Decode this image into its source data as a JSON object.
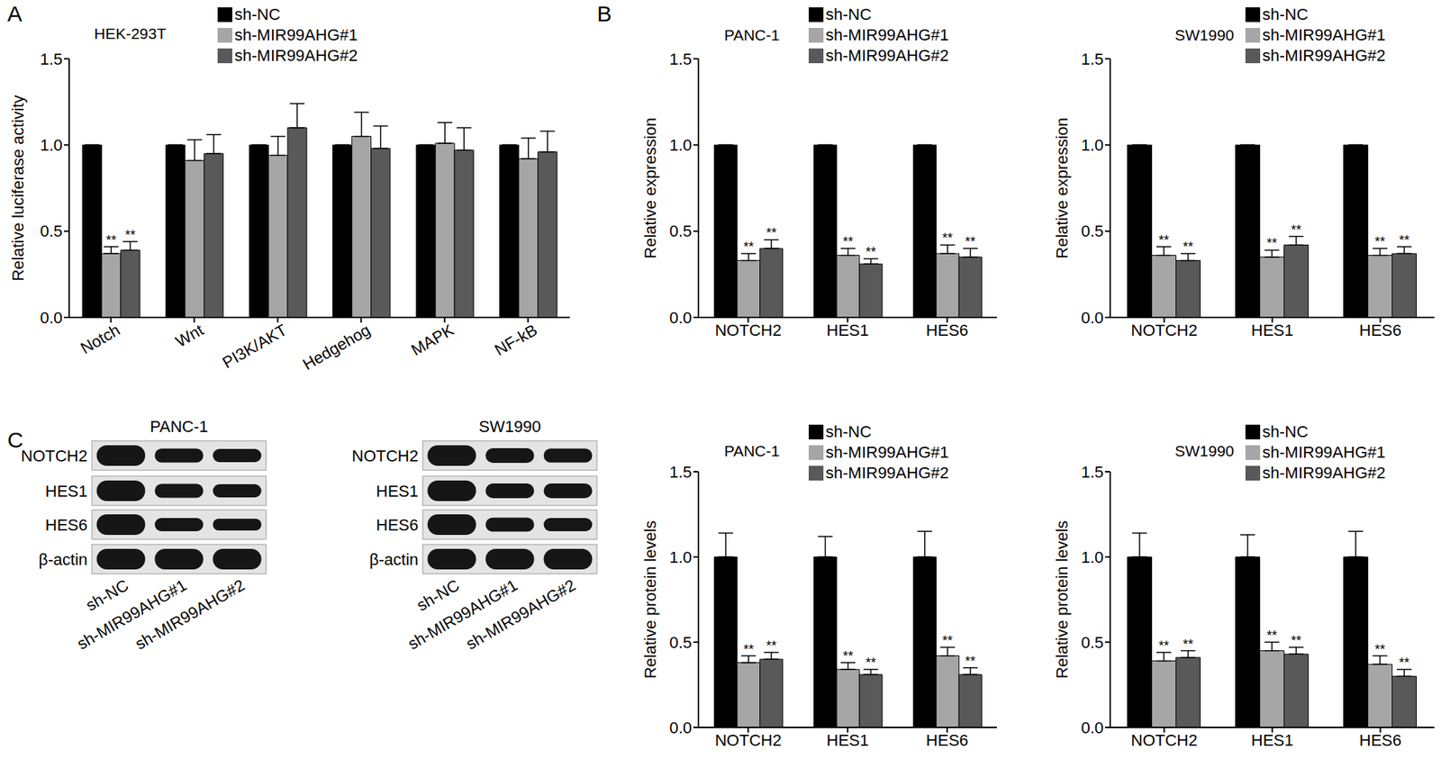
{
  "chart_data": [
    {
      "type": "bar",
      "title": "HEK-293T",
      "annotations": [
        "A"
      ],
      "ylabel": "Relative luciferase activity",
      "categories": [
        "Notch",
        "Wnt",
        "PI3K/AKT",
        "Hedgehog",
        "MAPK",
        "NF-kB"
      ],
      "ylim": [
        0,
        1.5
      ],
      "yticks": [
        {
          "value": 0,
          "label": "0.0"
        },
        0.5,
        {
          "value": 1,
          "label": "1.0"
        },
        1.5
      ],
      "grid": false,
      "legend": "top",
      "series": [
        {
          "name": "sh-NC",
          "color": "#000000",
          "values": [
            1,
            1,
            1,
            1,
            1,
            1
          ],
          "errors": [
            0,
            0,
            0,
            0,
            0,
            0
          ]
        },
        {
          "name": "sh-MIR99AHG#1",
          "color": "#a6a6a6",
          "values": [
            0.37,
            0.91,
            0.94,
            1.05,
            1.01,
            0.92
          ],
          "errors": [
            0.04,
            0.12,
            0.11,
            0.14,
            0.12,
            0.12
          ],
          "annotations": [
            "**",
            null,
            null,
            null,
            null,
            null
          ]
        },
        {
          "name": "sh-MIR99AHG#2",
          "color": "#595959",
          "values": [
            0.39,
            0.95,
            1.1,
            0.98,
            0.97,
            0.96
          ],
          "errors": [
            0.05,
            0.11,
            0.14,
            0.13,
            0.13,
            0.12
          ],
          "annotations": [
            "**",
            null,
            null,
            null,
            null,
            null
          ]
        }
      ]
    },
    {
      "type": "bar",
      "title": "PANC-1",
      "annotations": [
        "B"
      ],
      "ylabel": "Relative expression",
      "categories": [
        "NOTCH2",
        "HES1",
        "HES6"
      ],
      "ylim": [
        0,
        1.5
      ],
      "yticks": [
        {
          "value": 0,
          "label": "0.0"
        },
        0.5,
        {
          "value": 1,
          "label": "1.0"
        },
        1.5
      ],
      "grid": false,
      "legend": "top",
      "series": [
        {
          "name": "sh-NC",
          "color": "#000000",
          "values": [
            1,
            1,
            1
          ],
          "errors": [
            0,
            0,
            0
          ]
        },
        {
          "name": "sh-MIR99AHG#1",
          "color": "#a6a6a6",
          "values": [
            0.33,
            0.36,
            0.37
          ],
          "errors": [
            0.04,
            0.04,
            0.05
          ],
          "annotations": [
            "**",
            "**",
            "**"
          ]
        },
        {
          "name": "sh-MIR99AHG#2",
          "color": "#595959",
          "values": [
            0.4,
            0.31,
            0.35
          ],
          "errors": [
            0.05,
            0.03,
            0.05
          ],
          "annotations": [
            "**",
            "**",
            "**"
          ]
        }
      ]
    },
    {
      "type": "bar",
      "title": "SW1990",
      "ylabel": "Relative expression",
      "categories": [
        "NOTCH2",
        "HES1",
        "HES6"
      ],
      "ylim": [
        0,
        1.5
      ],
      "yticks": [
        {
          "value": 0,
          "label": "0.0"
        },
        0.5,
        {
          "value": 1,
          "label": "1.0"
        },
        1.5
      ],
      "grid": false,
      "legend": "top",
      "series": [
        {
          "name": "sh-NC",
          "color": "#000000",
          "values": [
            1,
            1,
            1
          ],
          "errors": [
            0,
            0,
            0
          ]
        },
        {
          "name": "sh-MIR99AHG#1",
          "color": "#a6a6a6",
          "values": [
            0.36,
            0.35,
            0.36
          ],
          "errors": [
            0.05,
            0.04,
            0.04
          ],
          "annotations": [
            "**",
            "**",
            "**"
          ]
        },
        {
          "name": "sh-MIR99AHG#2",
          "color": "#595959",
          "values": [
            0.33,
            0.42,
            0.37
          ],
          "errors": [
            0.04,
            0.05,
            0.04
          ],
          "annotations": [
            "**",
            "**",
            "**"
          ]
        }
      ]
    },
    {
      "type": "blot",
      "title": "PANC-1",
      "annotations": [
        "C"
      ],
      "categories": [
        "sh-NC",
        "sh-MIR99AHG#1",
        "sh-MIR99AHG#2"
      ],
      "series": [
        {
          "name": "NOTCH2",
          "values": [
            1,
            0.55,
            0.5
          ]
        },
        {
          "name": "HES1",
          "values": [
            1,
            0.55,
            0.5
          ]
        },
        {
          "name": "HES6",
          "values": [
            1,
            0.5,
            0.4
          ]
        },
        {
          "name": "β-actin",
          "values": [
            1,
            1,
            1
          ]
        }
      ]
    },
    {
      "type": "blot",
      "title": "SW1990",
      "categories": [
        "sh-NC",
        "sh-MIR99AHG#1",
        "sh-MIR99AHG#2"
      ],
      "series": [
        {
          "name": "NOTCH2",
          "values": [
            1,
            0.6,
            0.55
          ]
        },
        {
          "name": "HES1",
          "values": [
            1,
            0.6,
            0.6
          ]
        },
        {
          "name": "HES6",
          "values": [
            1,
            0.55,
            0.5
          ]
        },
        {
          "name": "β-actin",
          "values": [
            1,
            1,
            1
          ]
        }
      ]
    },
    {
      "type": "bar",
      "title": "PANC-1",
      "ylabel": "Relative protein levels",
      "categories": [
        "NOTCH2",
        "HES1",
        "HES6"
      ],
      "ylim": [
        0,
        1.5
      ],
      "yticks": [
        {
          "value": 0,
          "label": "0.0"
        },
        0.5,
        {
          "value": 1,
          "label": "1.0"
        },
        1.5
      ],
      "grid": false,
      "legend": "top",
      "series": [
        {
          "name": "sh-NC",
          "color": "#000000",
          "values": [
            1,
            1,
            1
          ],
          "errors": [
            0.14,
            0.12,
            0.15
          ]
        },
        {
          "name": "sh-MIR99AHG#1",
          "color": "#a6a6a6",
          "values": [
            0.38,
            0.34,
            0.42
          ],
          "errors": [
            0.04,
            0.04,
            0.05
          ],
          "annotations": [
            "**",
            "**",
            "**"
          ]
        },
        {
          "name": "sh-MIR99AHG#2",
          "color": "#595959",
          "values": [
            0.4,
            0.31,
            0.31
          ],
          "errors": [
            0.04,
            0.03,
            0.04
          ],
          "annotations": [
            "**",
            "**",
            "**"
          ]
        }
      ]
    },
    {
      "type": "bar",
      "title": "SW1990",
      "ylabel": "Relative protein levels",
      "categories": [
        "NOTCH2",
        "HES1",
        "HES6"
      ],
      "ylim": [
        0,
        1.5
      ],
      "yticks": [
        {
          "value": 0,
          "label": "0.0"
        },
        0.5,
        {
          "value": 1,
          "label": "1.0"
        },
        1.5
      ],
      "grid": false,
      "legend": "top",
      "series": [
        {
          "name": "sh-NC",
          "color": "#000000",
          "values": [
            1,
            1,
            1
          ],
          "errors": [
            0.14,
            0.13,
            0.15
          ]
        },
        {
          "name": "sh-MIR99AHG#1",
          "color": "#a6a6a6",
          "values": [
            0.39,
            0.45,
            0.37
          ],
          "errors": [
            0.05,
            0.05,
            0.05
          ],
          "annotations": [
            "**",
            "**",
            "**"
          ]
        },
        {
          "name": "sh-MIR99AHG#2",
          "color": "#595959",
          "values": [
            0.41,
            0.43,
            0.3
          ],
          "errors": [
            0.04,
            0.04,
            0.04
          ],
          "annotations": [
            "**",
            "**",
            "**"
          ]
        }
      ]
    }
  ]
}
